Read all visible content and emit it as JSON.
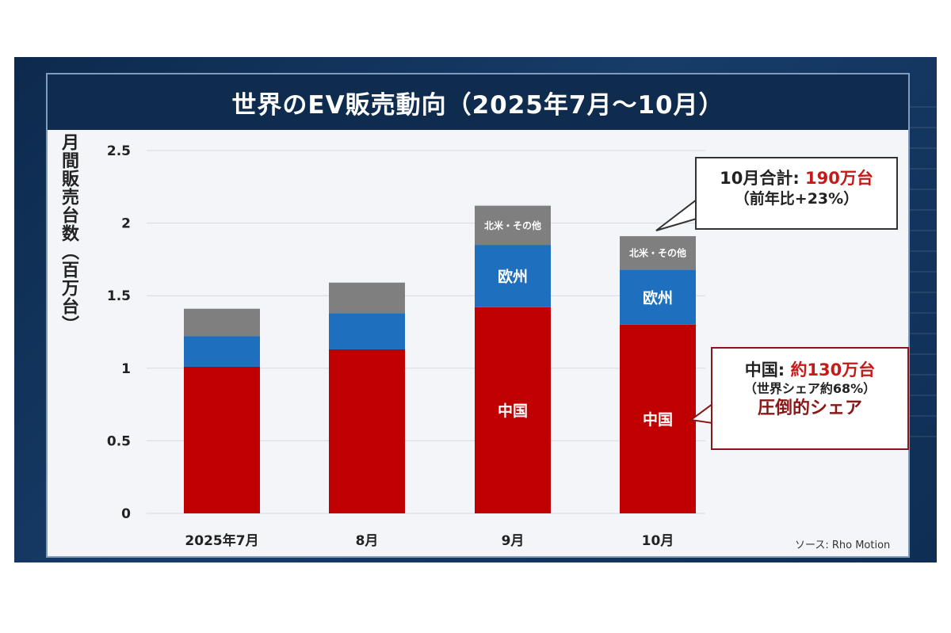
{
  "title": "世界のEV販売動向（2025年7月〜10月）",
  "source": "ソース: Rho Motion",
  "colors": {
    "china": "#c00000",
    "europe": "#1f6fbf",
    "other": "#7f7f7f",
    "title_bg": "#0f2c4f",
    "accent_red": "#c41a1a"
  },
  "chart_data": {
    "type": "bar",
    "stacked": true,
    "ylabel": "月間販売台数（百万台）",
    "ylim": [
      0,
      2.5
    ],
    "yticks": [
      "0",
      "0.5",
      "1",
      "1.5",
      "2",
      "2.5"
    ],
    "grid": true,
    "categories": [
      "2025年7月",
      "8月",
      "9月",
      "10月"
    ],
    "series": [
      {
        "name": "中国",
        "values": [
          1.01,
          1.13,
          1.42,
          1.3
        ],
        "labels": [
          "",
          "",
          "中国",
          "中国"
        ]
      },
      {
        "name": "欧州",
        "values": [
          0.21,
          0.25,
          0.43,
          0.38
        ],
        "labels": [
          "",
          "",
          "欧州",
          "欧州"
        ]
      },
      {
        "name": "北米・その他",
        "values": [
          0.19,
          0.21,
          0.27,
          0.23
        ],
        "labels": [
          "",
          "",
          "北米・その他",
          "北米・その他"
        ]
      }
    ]
  },
  "callouts": {
    "total": {
      "prefix": "10月合計: ",
      "value": "190万台",
      "sub": "（前年比+23%）"
    },
    "china": {
      "prefix": "中国: ",
      "value": "約130万台",
      "sub": "（世界シェア約68%）",
      "note": "圧倒的シェア"
    }
  }
}
